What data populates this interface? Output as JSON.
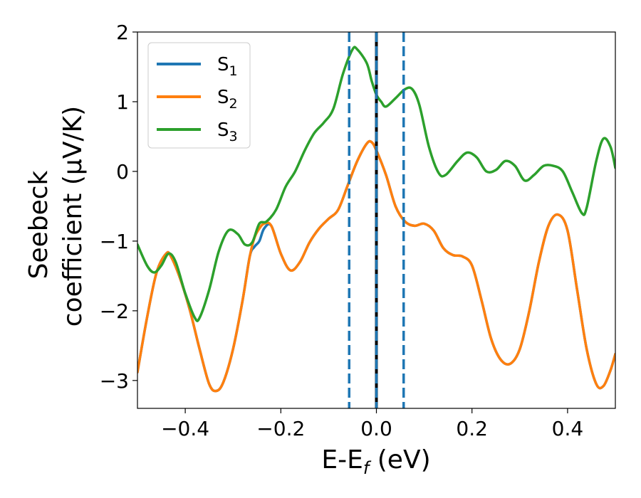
{
  "chart_data": {
    "type": "line",
    "xlabel": "E-E",
    "xlabel_sub": "f",
    "xlabel_unit": " (eV)",
    "ylabel_line1": "Seebeck",
    "ylabel_line2": "coefficient  (μV/K)",
    "xlim": [
      -0.5,
      0.5
    ],
    "ylim": [
      -3.4,
      2.0
    ],
    "xticks": [
      -0.4,
      -0.2,
      0.0,
      0.2,
      0.4
    ],
    "xtick_labels": [
      "−0.4",
      "−0.2",
      "0.0",
      "0.2",
      "0.4"
    ],
    "yticks": [
      -3,
      -2,
      -1,
      0,
      1,
      2
    ],
    "ytick_labels": [
      "−3",
      "−2",
      "−1",
      "0",
      "1",
      "2"
    ],
    "grid": false,
    "legend_position": "top-left",
    "series": [
      {
        "name": "S",
        "sub": "1",
        "color": "#1f77b4",
        "points": [
          [
            -0.5,
            -2.88
          ],
          [
            -0.48,
            -2.1
          ],
          [
            -0.46,
            -1.45
          ],
          [
            -0.44,
            -1.18
          ],
          [
            -0.43,
            -1.22
          ],
          [
            -0.41,
            -1.55
          ],
          [
            -0.39,
            -2.0
          ],
          [
            -0.37,
            -2.55
          ],
          [
            -0.35,
            -3.05
          ],
          [
            -0.335,
            -3.15
          ],
          [
            -0.32,
            -3.02
          ],
          [
            -0.3,
            -2.55
          ],
          [
            -0.28,
            -1.85
          ],
          [
            -0.265,
            -1.22
          ],
          [
            -0.255,
            -1.08
          ],
          [
            -0.245,
            -1.0
          ],
          [
            -0.235,
            -0.82
          ],
          [
            -0.22,
            -0.78
          ],
          [
            -0.2,
            -1.18
          ],
          [
            -0.18,
            -1.42
          ],
          [
            -0.16,
            -1.3
          ],
          [
            -0.14,
            -1.02
          ],
          [
            -0.12,
            -0.82
          ],
          [
            -0.1,
            -0.68
          ],
          [
            -0.08,
            -0.55
          ],
          [
            -0.06,
            -0.2
          ],
          [
            -0.04,
            0.15
          ],
          [
            -0.02,
            0.4
          ],
          [
            -0.01,
            0.42
          ],
          [
            0.0,
            0.3
          ],
          [
            0.02,
            -0.05
          ],
          [
            0.04,
            -0.5
          ],
          [
            0.06,
            -0.72
          ],
          [
            0.08,
            -0.78
          ],
          [
            0.1,
            -0.75
          ],
          [
            0.12,
            -0.85
          ],
          [
            0.14,
            -1.1
          ],
          [
            0.16,
            -1.2
          ],
          [
            0.18,
            -1.22
          ],
          [
            0.2,
            -1.35
          ],
          [
            0.22,
            -1.85
          ],
          [
            0.24,
            -2.4
          ],
          [
            0.26,
            -2.7
          ],
          [
            0.28,
            -2.76
          ],
          [
            0.3,
            -2.55
          ],
          [
            0.32,
            -2.0
          ],
          [
            0.34,
            -1.3
          ],
          [
            0.36,
            -0.78
          ],
          [
            0.38,
            -0.62
          ],
          [
            0.4,
            -0.85
          ],
          [
            0.42,
            -1.7
          ],
          [
            0.44,
            -2.55
          ],
          [
            0.46,
            -3.05
          ],
          [
            0.475,
            -3.08
          ],
          [
            0.49,
            -2.85
          ],
          [
            0.5,
            -2.62
          ]
        ]
      },
      {
        "name": "S",
        "sub": "2",
        "color": "#ff7f0e",
        "points": [
          [
            -0.5,
            -2.88
          ],
          [
            -0.48,
            -2.1
          ],
          [
            -0.46,
            -1.45
          ],
          [
            -0.44,
            -1.18
          ],
          [
            -0.43,
            -1.22
          ],
          [
            -0.41,
            -1.55
          ],
          [
            -0.39,
            -2.0
          ],
          [
            -0.37,
            -2.55
          ],
          [
            -0.35,
            -3.05
          ],
          [
            -0.335,
            -3.15
          ],
          [
            -0.32,
            -3.02
          ],
          [
            -0.3,
            -2.55
          ],
          [
            -0.28,
            -1.85
          ],
          [
            -0.265,
            -1.22
          ],
          [
            -0.255,
            -0.95
          ],
          [
            -0.245,
            -0.82
          ],
          [
            -0.235,
            -0.75
          ],
          [
            -0.22,
            -0.78
          ],
          [
            -0.2,
            -1.18
          ],
          [
            -0.18,
            -1.42
          ],
          [
            -0.16,
            -1.3
          ],
          [
            -0.14,
            -1.02
          ],
          [
            -0.12,
            -0.82
          ],
          [
            -0.1,
            -0.68
          ],
          [
            -0.08,
            -0.55
          ],
          [
            -0.06,
            -0.2
          ],
          [
            -0.04,
            0.15
          ],
          [
            -0.02,
            0.4
          ],
          [
            -0.01,
            0.42
          ],
          [
            0.0,
            0.3
          ],
          [
            0.02,
            -0.05
          ],
          [
            0.04,
            -0.5
          ],
          [
            0.06,
            -0.72
          ],
          [
            0.08,
            -0.78
          ],
          [
            0.1,
            -0.75
          ],
          [
            0.12,
            -0.85
          ],
          [
            0.14,
            -1.1
          ],
          [
            0.16,
            -1.2
          ],
          [
            0.18,
            -1.22
          ],
          [
            0.2,
            -1.35
          ],
          [
            0.22,
            -1.85
          ],
          [
            0.24,
            -2.4
          ],
          [
            0.26,
            -2.7
          ],
          [
            0.28,
            -2.76
          ],
          [
            0.3,
            -2.55
          ],
          [
            0.32,
            -2.0
          ],
          [
            0.34,
            -1.3
          ],
          [
            0.36,
            -0.78
          ],
          [
            0.38,
            -0.62
          ],
          [
            0.4,
            -0.85
          ],
          [
            0.42,
            -1.7
          ],
          [
            0.44,
            -2.55
          ],
          [
            0.46,
            -3.05
          ],
          [
            0.475,
            -3.08
          ],
          [
            0.49,
            -2.85
          ],
          [
            0.5,
            -2.62
          ]
        ]
      },
      {
        "name": "S",
        "sub": "3",
        "color": "#2ca02c",
        "points": [
          [
            -0.5,
            -1.05
          ],
          [
            -0.48,
            -1.35
          ],
          [
            -0.465,
            -1.45
          ],
          [
            -0.45,
            -1.35
          ],
          [
            -0.435,
            -1.18
          ],
          [
            -0.42,
            -1.3
          ],
          [
            -0.4,
            -1.75
          ],
          [
            -0.38,
            -2.1
          ],
          [
            -0.37,
            -2.1
          ],
          [
            -0.35,
            -1.7
          ],
          [
            -0.33,
            -1.15
          ],
          [
            -0.31,
            -0.85
          ],
          [
            -0.29,
            -0.9
          ],
          [
            -0.275,
            -1.05
          ],
          [
            -0.26,
            -1.02
          ],
          [
            -0.245,
            -0.75
          ],
          [
            -0.23,
            -0.72
          ],
          [
            -0.21,
            -0.55
          ],
          [
            -0.19,
            -0.22
          ],
          [
            -0.17,
            0.0
          ],
          [
            -0.15,
            0.3
          ],
          [
            -0.13,
            0.55
          ],
          [
            -0.11,
            0.7
          ],
          [
            -0.09,
            0.9
          ],
          [
            -0.07,
            1.4
          ],
          [
            -0.05,
            1.75
          ],
          [
            -0.04,
            1.75
          ],
          [
            -0.02,
            1.55
          ],
          [
            -0.01,
            1.3
          ],
          [
            0.0,
            1.1
          ],
          [
            0.01,
            1.0
          ],
          [
            0.02,
            0.93
          ],
          [
            0.04,
            1.05
          ],
          [
            0.06,
            1.18
          ],
          [
            0.075,
            1.18
          ],
          [
            0.09,
            0.95
          ],
          [
            0.11,
            0.35
          ],
          [
            0.13,
            -0.02
          ],
          [
            0.145,
            -0.05
          ],
          [
            0.17,
            0.15
          ],
          [
            0.19,
            0.27
          ],
          [
            0.21,
            0.2
          ],
          [
            0.23,
            0.0
          ],
          [
            0.25,
            0.02
          ],
          [
            0.27,
            0.15
          ],
          [
            0.29,
            0.08
          ],
          [
            0.31,
            -0.13
          ],
          [
            0.33,
            -0.05
          ],
          [
            0.35,
            0.08
          ],
          [
            0.37,
            0.08
          ],
          [
            0.39,
            0.0
          ],
          [
            0.41,
            -0.3
          ],
          [
            0.43,
            -0.6
          ],
          [
            0.44,
            -0.52
          ],
          [
            0.46,
            0.15
          ],
          [
            0.475,
            0.47
          ],
          [
            0.49,
            0.35
          ],
          [
            0.5,
            0.05
          ]
        ]
      }
    ],
    "vlines": [
      {
        "x": -0.057,
        "color": "#1f77b4",
        "style": "dashed"
      },
      {
        "x": 0.057,
        "color": "#1f77b4",
        "style": "dashed"
      },
      {
        "x": 0.0,
        "color": "#000000",
        "style": "solid"
      },
      {
        "x": 0.0,
        "color": "#1f77b4",
        "style": "dashed"
      }
    ]
  }
}
